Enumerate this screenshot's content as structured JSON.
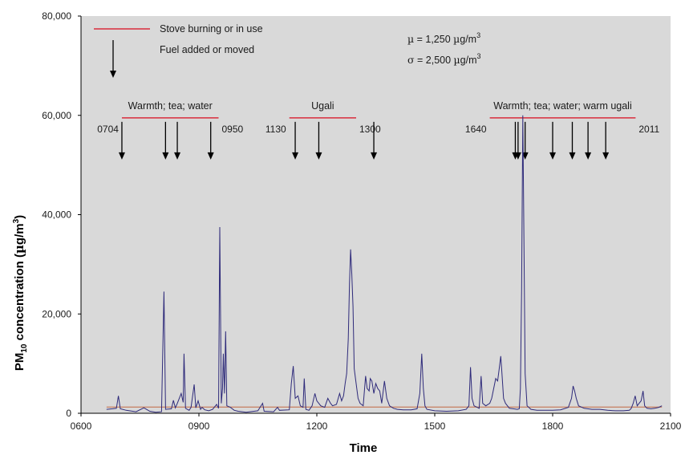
{
  "chart_data": {
    "type": "line",
    "xlabel": "Time",
    "ylabel": "PM10 concentration (µg/m3)",
    "ylabel_parts": {
      "pm": "PM",
      "sub": "10",
      "rest": " concentration (",
      "mu": "µ",
      "g": "g/m",
      "sup": "3",
      "close": ")"
    },
    "xlim": [
      600,
      2100
    ],
    "ylim": [
      0,
      80000
    ],
    "x_ticks": [
      {
        "value": 600,
        "label": "0600"
      },
      {
        "value": 900,
        "label": "0900"
      },
      {
        "value": 1200,
        "label": "1200"
      },
      {
        "value": 1500,
        "label": "1500"
      },
      {
        "value": 1800,
        "label": "1800"
      },
      {
        "value": 2100,
        "label": "2100"
      }
    ],
    "y_ticks": [
      {
        "value": 0,
        "label": "0"
      },
      {
        "value": 20000,
        "label": "20,000"
      },
      {
        "value": 40000,
        "label": "40,000"
      },
      {
        "value": 60000,
        "label": "60,000"
      },
      {
        "value": 80000,
        "label": "80,000"
      }
    ],
    "grid": false,
    "background_color": "#d9d9d9",
    "series_color": "#2e2a7a",
    "baseline_color": "#c8876b",
    "mean_line_value": 1250,
    "legend": {
      "placement": "top-left",
      "stove_label": "Stove burning or in use",
      "fuel_label": "Fuel added or moved",
      "stove_color": "#d92c3c"
    },
    "stats": {
      "mu": {
        "symbol": "µ",
        "eq": " = 1,250 ",
        "unit_mu": "µ",
        "unit": "g/m",
        "sup": "3"
      },
      "sigma": {
        "symbol": "σ",
        "eq": " = 2,500 ",
        "unit_mu": "µ",
        "unit": "g/m",
        "sup": "3"
      }
    },
    "stove_periods": [
      {
        "label": "Warmth; tea; water",
        "start": 704,
        "end": 950,
        "start_label": "0704",
        "end_label": "0950"
      },
      {
        "label": "Ugali",
        "start": 1130,
        "end": 1300,
        "start_label": "1130",
        "end_label": "1300"
      },
      {
        "label": "Warmth; tea; water; warm ugali",
        "start": 1640,
        "end": 2011,
        "start_label": "1640",
        "end_label": "2011"
      }
    ],
    "fuel_events": [
      704,
      815,
      845,
      930,
      1145,
      1205,
      1345,
      1705,
      1712,
      1730,
      1800,
      1850,
      1890,
      1935
    ],
    "series": [
      {
        "values": [
          [
            665,
            800
          ],
          [
            680,
            900
          ],
          [
            690,
            1000
          ],
          [
            695,
            3500
          ],
          [
            700,
            900
          ],
          [
            715,
            600
          ],
          [
            740,
            300
          ],
          [
            760,
            1100
          ],
          [
            775,
            400
          ],
          [
            790,
            200
          ],
          [
            805,
            300
          ],
          [
            811,
            24500
          ],
          [
            815,
            800
          ],
          [
            830,
            900
          ],
          [
            835,
            2600
          ],
          [
            840,
            1100
          ],
          [
            845,
            2000
          ],
          [
            855,
            4000
          ],
          [
            860,
            2200
          ],
          [
            862,
            12000
          ],
          [
            866,
            1000
          ],
          [
            875,
            600
          ],
          [
            880,
            1200
          ],
          [
            888,
            5800
          ],
          [
            892,
            1100
          ],
          [
            898,
            2500
          ],
          [
            904,
            800
          ],
          [
            908,
            1200
          ],
          [
            915,
            700
          ],
          [
            925,
            500
          ],
          [
            935,
            800
          ],
          [
            945,
            1800
          ],
          [
            950,
            1000
          ],
          [
            953,
            37500
          ],
          [
            957,
            2000
          ],
          [
            960,
            5000
          ],
          [
            962,
            12000
          ],
          [
            965,
            4000
          ],
          [
            968,
            16500
          ],
          [
            971,
            1500
          ],
          [
            980,
            1200
          ],
          [
            990,
            600
          ],
          [
            1000,
            400
          ],
          [
            1020,
            200
          ],
          [
            1050,
            500
          ],
          [
            1062,
            2000
          ],
          [
            1066,
            400
          ],
          [
            1090,
            300
          ],
          [
            1100,
            1200
          ],
          [
            1105,
            600
          ],
          [
            1130,
            700
          ],
          [
            1135,
            6000
          ],
          [
            1140,
            9500
          ],
          [
            1145,
            3000
          ],
          [
            1152,
            3500
          ],
          [
            1158,
            1500
          ],
          [
            1165,
            1200
          ],
          [
            1168,
            7000
          ],
          [
            1172,
            800
          ],
          [
            1180,
            600
          ],
          [
            1188,
            1500
          ],
          [
            1195,
            4000
          ],
          [
            1200,
            2500
          ],
          [
            1210,
            1500
          ],
          [
            1220,
            1200
          ],
          [
            1228,
            3000
          ],
          [
            1235,
            2000
          ],
          [
            1240,
            1500
          ],
          [
            1250,
            1800
          ],
          [
            1258,
            4000
          ],
          [
            1263,
            2500
          ],
          [
            1268,
            3500
          ],
          [
            1272,
            6000
          ],
          [
            1276,
            8000
          ],
          [
            1280,
            15000
          ],
          [
            1283,
            26000
          ],
          [
            1286,
            33000
          ],
          [
            1289,
            28000
          ],
          [
            1292,
            21500
          ],
          [
            1295,
            9000
          ],
          [
            1300,
            6000
          ],
          [
            1305,
            3000
          ],
          [
            1310,
            2000
          ],
          [
            1318,
            1500
          ],
          [
            1324,
            7500
          ],
          [
            1328,
            5000
          ],
          [
            1333,
            4500
          ],
          [
            1336,
            7000
          ],
          [
            1340,
            6500
          ],
          [
            1345,
            4000
          ],
          [
            1350,
            6000
          ],
          [
            1355,
            5000
          ],
          [
            1360,
            4500
          ],
          [
            1365,
            2000
          ],
          [
            1372,
            6500
          ],
          [
            1378,
            3000
          ],
          [
            1385,
            1500
          ],
          [
            1395,
            1000
          ],
          [
            1405,
            800
          ],
          [
            1420,
            700
          ],
          [
            1440,
            700
          ],
          [
            1455,
            900
          ],
          [
            1462,
            4000
          ],
          [
            1467,
            12000
          ],
          [
            1471,
            5000
          ],
          [
            1475,
            1500
          ],
          [
            1480,
            800
          ],
          [
            1500,
            500
          ],
          [
            1530,
            400
          ],
          [
            1560,
            500
          ],
          [
            1580,
            800
          ],
          [
            1587,
            1500
          ],
          [
            1591,
            9300
          ],
          [
            1595,
            3000
          ],
          [
            1600,
            1500
          ],
          [
            1608,
            1200
          ],
          [
            1613,
            1000
          ],
          [
            1618,
            7500
          ],
          [
            1622,
            2000
          ],
          [
            1630,
            1500
          ],
          [
            1640,
            2000
          ],
          [
            1645,
            3000
          ],
          [
            1650,
            5000
          ],
          [
            1655,
            7000
          ],
          [
            1660,
            6500
          ],
          [
            1664,
            9000
          ],
          [
            1668,
            11500
          ],
          [
            1671,
            8000
          ],
          [
            1675,
            3000
          ],
          [
            1680,
            2000
          ],
          [
            1690,
            1000
          ],
          [
            1700,
            900
          ],
          [
            1710,
            800
          ],
          [
            1715,
            900
          ],
          [
            1718,
            5000
          ],
          [
            1721,
            25000
          ],
          [
            1724,
            60000
          ],
          [
            1727,
            35000
          ],
          [
            1730,
            8000
          ],
          [
            1735,
            1500
          ],
          [
            1745,
            800
          ],
          [
            1760,
            600
          ],
          [
            1780,
            600
          ],
          [
            1800,
            600
          ],
          [
            1820,
            700
          ],
          [
            1840,
            1200
          ],
          [
            1848,
            3000
          ],
          [
            1852,
            5500
          ],
          [
            1856,
            4500
          ],
          [
            1860,
            3000
          ],
          [
            1866,
            1500
          ],
          [
            1880,
            1000
          ],
          [
            1900,
            800
          ],
          [
            1920,
            800
          ],
          [
            1940,
            600
          ],
          [
            1960,
            500
          ],
          [
            1980,
            500
          ],
          [
            1995,
            600
          ],
          [
            2000,
            1000
          ],
          [
            2005,
            2000
          ],
          [
            2010,
            3500
          ],
          [
            2015,
            1500
          ],
          [
            2020,
            2000
          ],
          [
            2025,
            2500
          ],
          [
            2030,
            4500
          ],
          [
            2034,
            1500
          ],
          [
            2040,
            1000
          ],
          [
            2050,
            900
          ],
          [
            2060,
            1000
          ],
          [
            2070,
            1200
          ],
          [
            2078,
            1500
          ]
        ]
      }
    ]
  }
}
